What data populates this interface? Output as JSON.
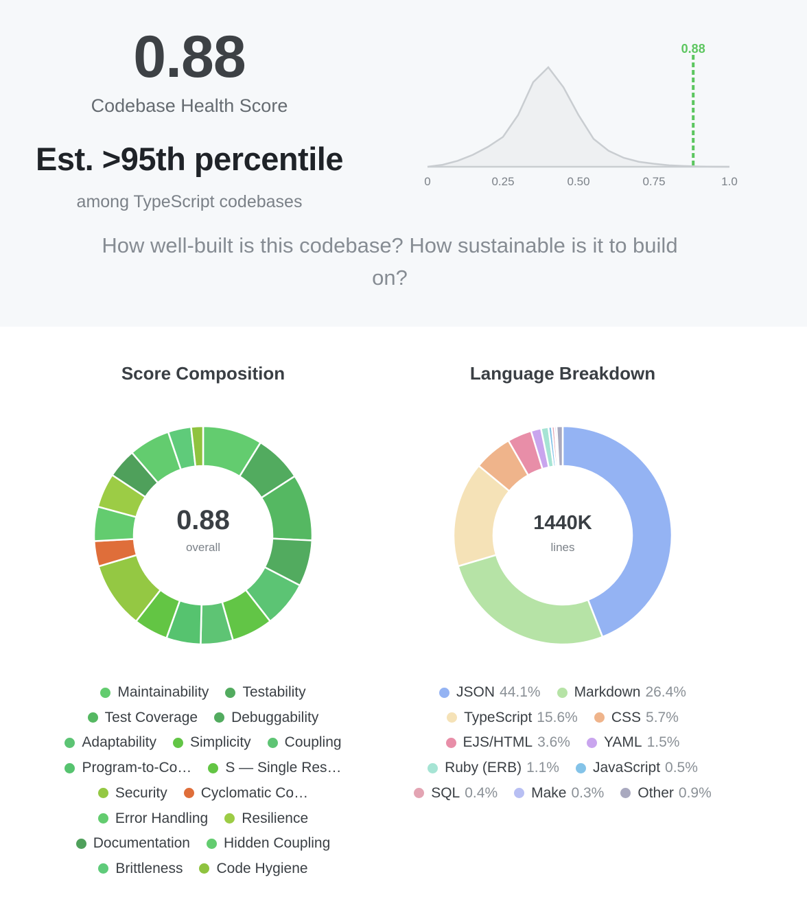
{
  "header": {
    "score": "0.88",
    "score_label": "Codebase Health Score",
    "percentile": "Est. >95th percentile",
    "percentile_context": "among TypeScript codebases",
    "question": "How well-built is this codebase? How sustainable is it to build on?"
  },
  "distribution": {
    "marker_value": 0.88,
    "marker_label": "0.88",
    "marker_color": "#5cc65f",
    "x_ticks": [
      "0",
      "0.25",
      "0.50",
      "0.75",
      "1.0"
    ],
    "xlim": [
      0,
      1
    ],
    "curve": [
      [
        0,
        0
      ],
      [
        0.05,
        0.02
      ],
      [
        0.1,
        0.06
      ],
      [
        0.15,
        0.12
      ],
      [
        0.2,
        0.2
      ],
      [
        0.25,
        0.3
      ],
      [
        0.3,
        0.52
      ],
      [
        0.35,
        0.85
      ],
      [
        0.4,
        1.0
      ],
      [
        0.45,
        0.8
      ],
      [
        0.5,
        0.52
      ],
      [
        0.55,
        0.28
      ],
      [
        0.6,
        0.16
      ],
      [
        0.65,
        0.09
      ],
      [
        0.7,
        0.05
      ],
      [
        0.75,
        0.03
      ],
      [
        0.8,
        0.015
      ],
      [
        0.85,
        0.008
      ],
      [
        0.9,
        0.003
      ],
      [
        0.95,
        0.001
      ],
      [
        1.0,
        0
      ]
    ]
  },
  "score_composition": {
    "title": "Score Composition",
    "center_value": "0.88",
    "center_label": "overall",
    "chart_data": {
      "type": "pie",
      "labels": [
        "Maintainability",
        "Testability",
        "Test Coverage",
        "Debuggability",
        "Adaptability",
        "Simplicity",
        "Coupling",
        "Program-to-Co…",
        "S — Single Res…",
        "Security",
        "Cyclomatic Co…",
        "Error Handling",
        "Resilience",
        "Documentation",
        "Hidden Coupling",
        "Brittleness",
        "Code Hygiene"
      ],
      "values": [
        8.5,
        6.8,
        9.5,
        6.6,
        6.6,
        5.9,
        4.6,
        4.9,
        4.9,
        9.5,
        3.6,
        4.9,
        4.9,
        4.2,
        5.9,
        3.3,
        1.7
      ],
      "colors": [
        "#63cc6f",
        "#52ab5f",
        "#55b862",
        "#52ab5f",
        "#5cc474",
        "#62c546",
        "#5ec474",
        "#56c36f",
        "#63c544",
        "#94c843",
        "#df6e3a",
        "#63cc6f",
        "#9ccc45",
        "#4fa05b",
        "#63cc6f",
        "#5fcb7a",
        "#8fc33f"
      ]
    }
  },
  "language_breakdown": {
    "title": "Language Breakdown",
    "center_value": "1440K",
    "center_label": "lines",
    "chart_data": {
      "type": "pie",
      "labels": [
        "JSON",
        "Markdown",
        "TypeScript",
        "CSS",
        "EJS/HTML",
        "YAML",
        "Ruby (ERB)",
        "JavaScript",
        "SQL",
        "Make",
        "Other"
      ],
      "values": [
        44.1,
        26.4,
        15.6,
        5.7,
        3.6,
        1.5,
        1.1,
        0.5,
        0.4,
        0.3,
        0.9
      ],
      "value_labels": [
        "44.1%",
        "26.4%",
        "15.6%",
        "5.7%",
        "3.6%",
        "1.5%",
        "1.1%",
        "0.5%",
        "0.4%",
        "0.3%",
        "0.9%"
      ],
      "colors": [
        "#94b3f3",
        "#b6e3a6",
        "#f5e2b7",
        "#efb48b",
        "#e88ea8",
        "#c9a5ee",
        "#a6e4d4",
        "#84c3e8",
        "#e3a4b3",
        "#b8bff3",
        "#a9a9bf"
      ]
    }
  }
}
